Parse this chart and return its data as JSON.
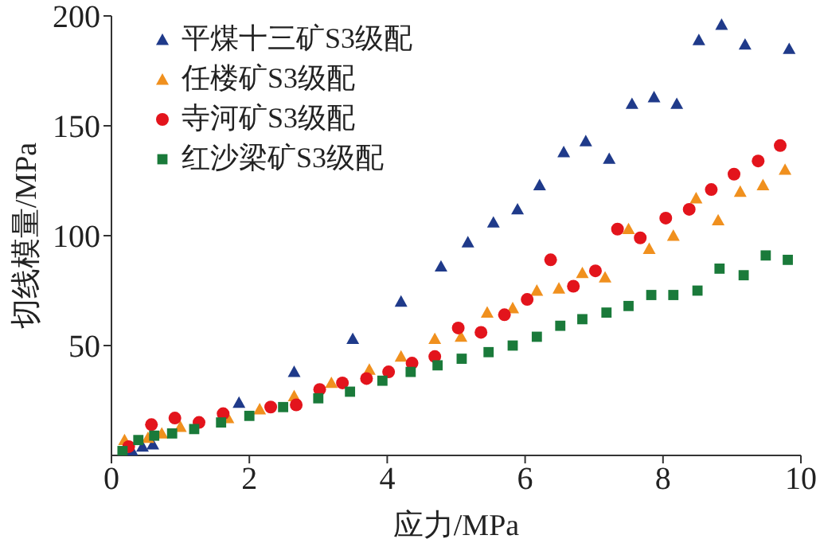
{
  "chart_data": {
    "type": "scatter",
    "xlabel": "应力/MPa",
    "ylabel": "切线模量/MPa",
    "xlim": [
      0,
      10
    ],
    "xticks": [
      0,
      2,
      4,
      6,
      8,
      10
    ],
    "ylim": [
      0,
      200
    ],
    "yticks": [
      50,
      100,
      150,
      200
    ],
    "grid": false,
    "legend": "top left",
    "series": [
      {
        "name": "平煤十三矿S3级配",
        "color": "#1f3a8a",
        "marker": "triangle",
        "x": [
          0.3,
          0.45,
          0.6,
          0.88,
          1.85,
          2.65,
          3.5,
          4.2,
          4.78,
          5.17,
          5.54,
          5.89,
          6.21,
          6.56,
          6.88,
          7.22,
          7.55,
          7.87,
          8.2,
          8.52,
          8.85,
          9.19,
          9.83
        ],
        "values": [
          2,
          4,
          5,
          null,
          24,
          38,
          53,
          70,
          86,
          97,
          106,
          112,
          123,
          138,
          143,
          135,
          160,
          163,
          160,
          189,
          196,
          187,
          185
        ]
      },
      {
        "name": "任楼矿S3级配",
        "color": "#f0901e",
        "marker": "triangle",
        "x": [
          0.19,
          0.53,
          0.73,
          1.0,
          1.69,
          2.15,
          2.65,
          3.19,
          3.74,
          4.2,
          4.69,
          5.07,
          5.45,
          5.82,
          6.17,
          6.49,
          6.83,
          7.16,
          7.5,
          7.8,
          8.15,
          8.48,
          8.8,
          9.12,
          9.45,
          9.77
        ],
        "values": [
          7,
          8,
          10,
          13,
          17,
          21,
          27,
          33,
          39,
          45,
          53,
          54,
          65,
          67,
          75,
          76,
          83,
          81,
          103,
          94,
          100,
          117,
          107,
          120,
          123,
          130
        ]
      },
      {
        "name": "寺河矿S3级配",
        "color": "#e3141c",
        "marker": "circle",
        "x": [
          0.25,
          0.58,
          0.92,
          1.27,
          1.62,
          1.96,
          2.31,
          2.68,
          3.02,
          3.35,
          3.7,
          4.02,
          4.36,
          4.69,
          5.03,
          5.36,
          5.7,
          6.03,
          6.37,
          6.7,
          7.02,
          7.34,
          7.67,
          8.04,
          8.38,
          8.7,
          9.03,
          9.38,
          9.7
        ],
        "values": [
          4,
          14,
          17,
          15,
          19,
          null,
          22,
          23,
          30,
          33,
          35,
          38,
          42,
          45,
          58,
          56,
          64,
          71,
          89,
          77,
          84,
          103,
          99,
          108,
          112,
          121,
          128,
          134,
          141
        ]
      },
      {
        "name": "红沙梁矿S3级配",
        "color": "#1a7a3a",
        "marker": "square",
        "x": [
          0.16,
          0.39,
          0.62,
          0.88,
          1.2,
          1.59,
          2.0,
          2.49,
          3.0,
          3.46,
          3.93,
          4.34,
          4.73,
          5.08,
          5.47,
          5.82,
          6.17,
          6.51,
          6.83,
          7.18,
          7.5,
          7.83,
          8.15,
          8.5,
          8.82,
          9.17,
          9.49,
          9.81
        ],
        "values": [
          2,
          7,
          9,
          10,
          12,
          15,
          18,
          22,
          26,
          29,
          34,
          38,
          41,
          44,
          47,
          50,
          54,
          59,
          62,
          65,
          68,
          73,
          73,
          75,
          85,
          82,
          91,
          89
        ]
      }
    ]
  }
}
